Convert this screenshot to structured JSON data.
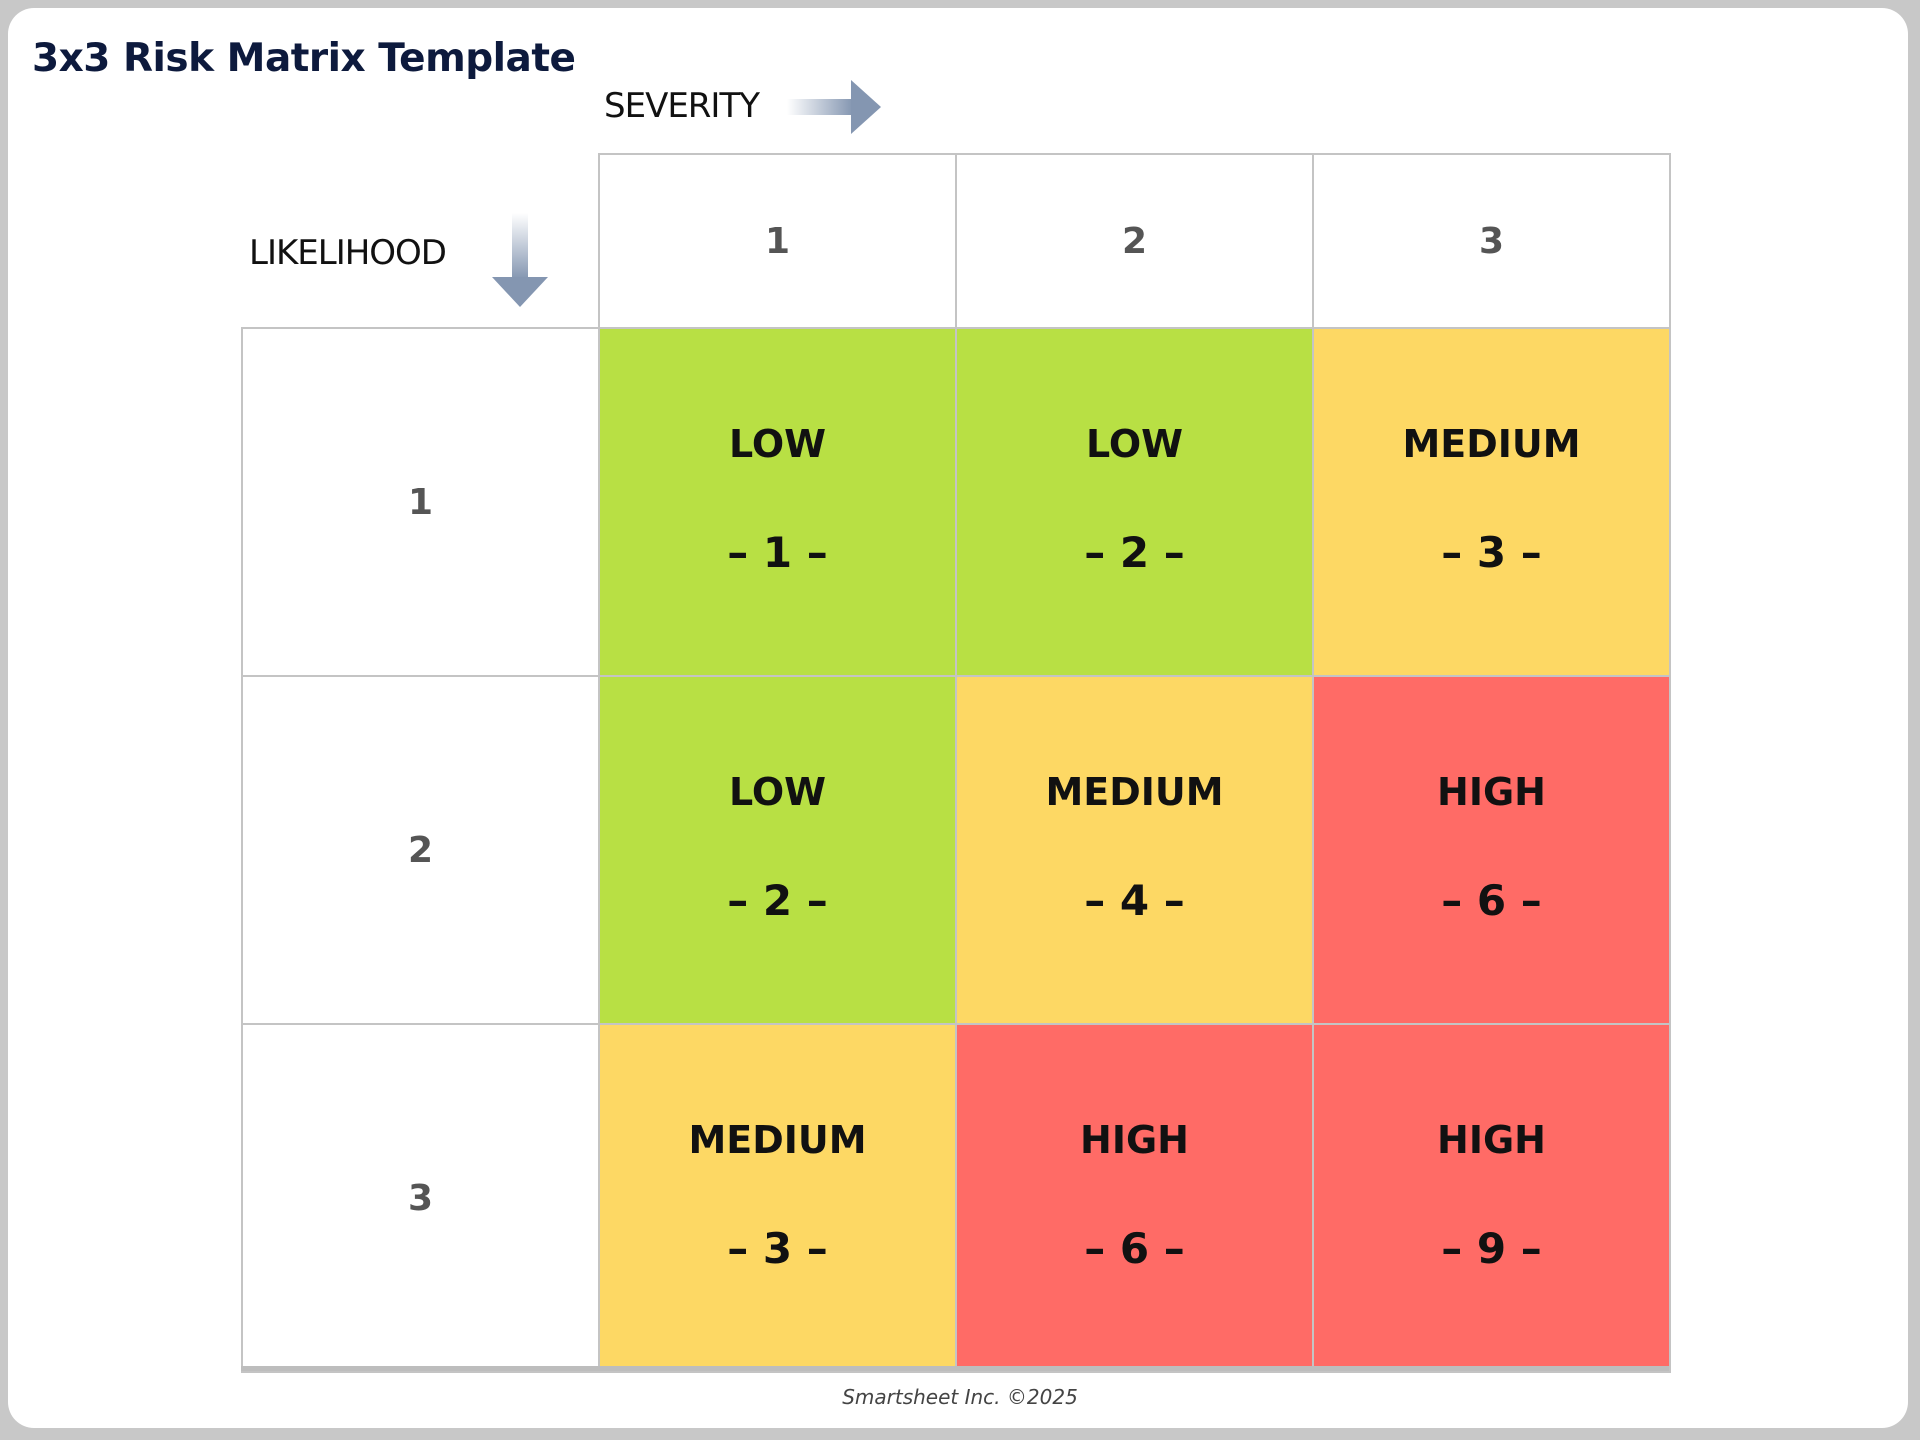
{
  "title": "3x3 Risk Matrix Template",
  "axes": {
    "severity": "SEVERITY",
    "likelihood": "LIKELIHOOD"
  },
  "severity_headers": [
    "1",
    "2",
    "3"
  ],
  "likelihood_headers": [
    "1",
    "2",
    "3"
  ],
  "colors": {
    "low": "#b8e044",
    "medium": "#fdd864",
    "high": "#ff6b66"
  },
  "rows": [
    [
      {
        "level": "LOW",
        "score": "– 1 –",
        "key": "low"
      },
      {
        "level": "LOW",
        "score": "– 2 –",
        "key": "low"
      },
      {
        "level": "MEDIUM",
        "score": "– 3 –",
        "key": "medium"
      }
    ],
    [
      {
        "level": "LOW",
        "score": "– 2 –",
        "key": "low"
      },
      {
        "level": "MEDIUM",
        "score": "– 4 –",
        "key": "medium"
      },
      {
        "level": "HIGH",
        "score": "– 6 –",
        "key": "high"
      }
    ],
    [
      {
        "level": "MEDIUM",
        "score": "– 3 –",
        "key": "medium"
      },
      {
        "level": "HIGH",
        "score": "– 6 –",
        "key": "high"
      },
      {
        "level": "HIGH",
        "score": "– 9 –",
        "key": "high"
      }
    ]
  ],
  "footer": "Smartsheet Inc. ©2025"
}
